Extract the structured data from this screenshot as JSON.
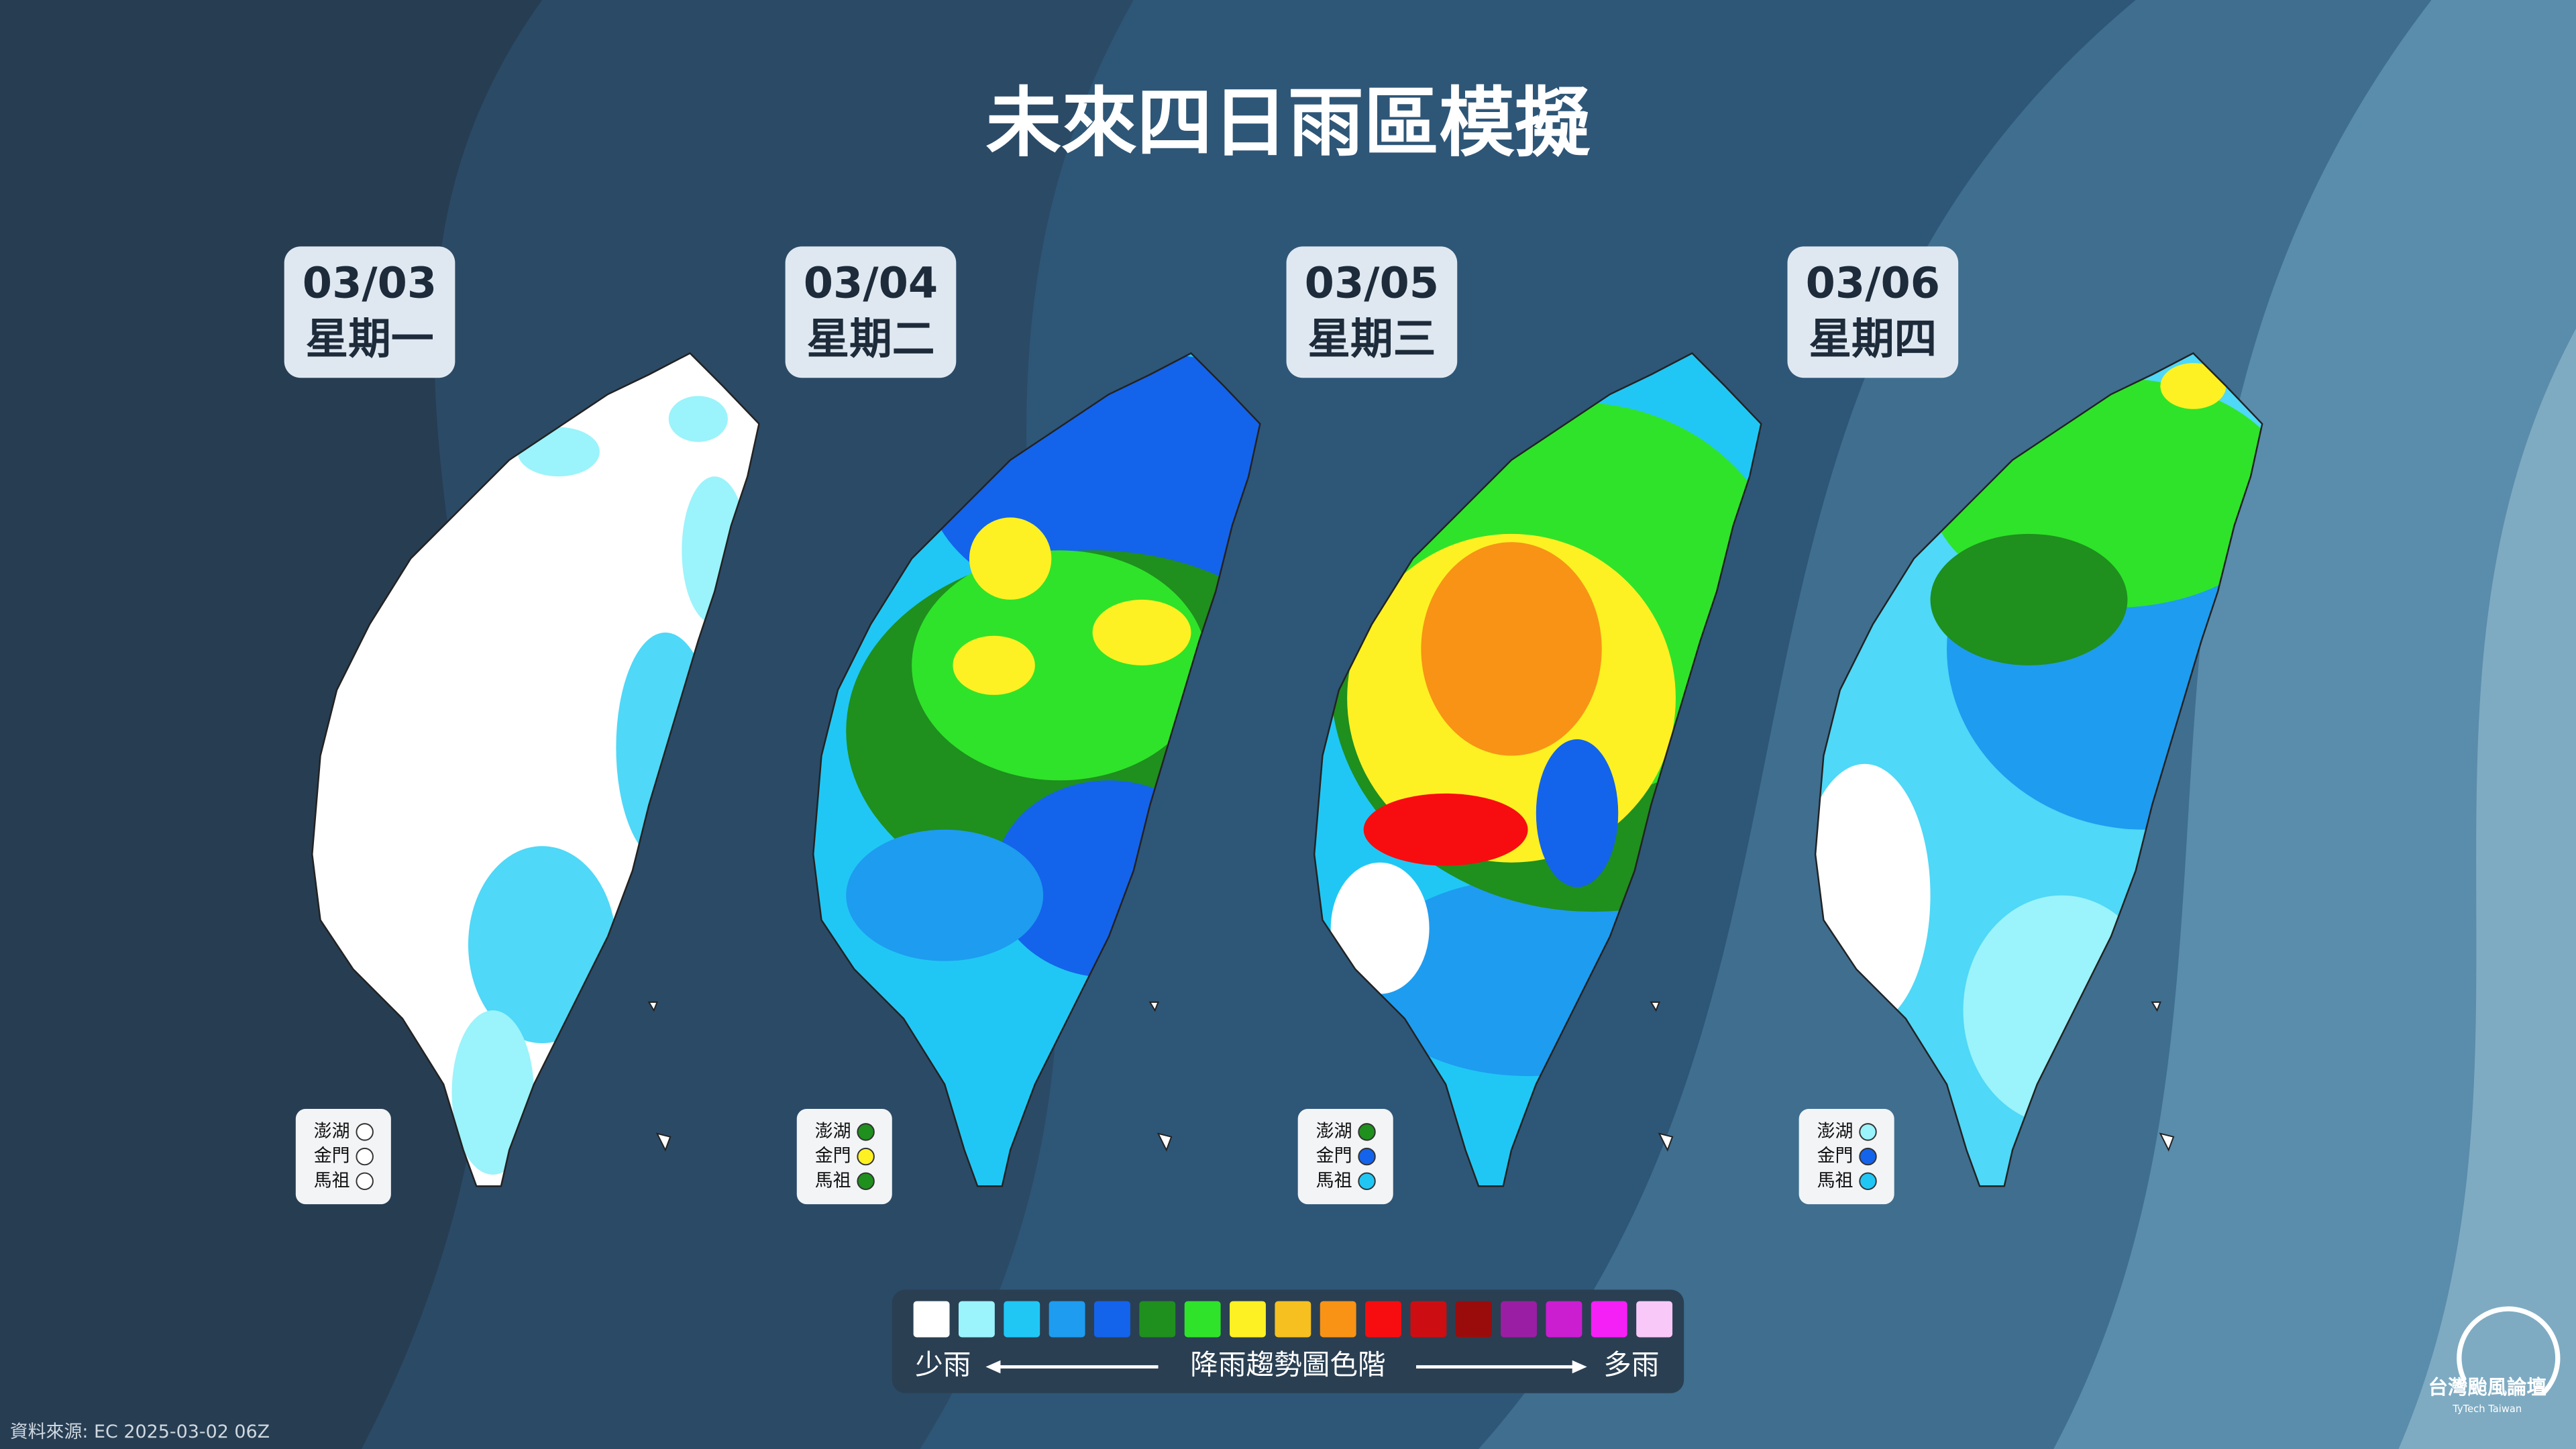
{
  "title": "未來四日雨區模擬",
  "days": [
    {
      "date": "03/03",
      "weekday": "星期一",
      "islands": [
        {
          "name": "澎湖",
          "color": "#ffffff"
        },
        {
          "name": "金門",
          "color": "#ffffff"
        },
        {
          "name": "馬祖",
          "color": "#ffffff"
        }
      ]
    },
    {
      "date": "03/04",
      "weekday": "星期二",
      "islands": [
        {
          "name": "澎湖",
          "color": "#1f8f1e"
        },
        {
          "name": "金門",
          "color": "#fdf123"
        },
        {
          "name": "馬祖",
          "color": "#1f8f1e"
        }
      ]
    },
    {
      "date": "03/05",
      "weekday": "星期三",
      "islands": [
        {
          "name": "澎湖",
          "color": "#1f8f1e"
        },
        {
          "name": "金門",
          "color": "#1463eb"
        },
        {
          "name": "馬祖",
          "color": "#20c7f5"
        }
      ]
    },
    {
      "date": "03/06",
      "weekday": "星期四",
      "islands": [
        {
          "name": "澎湖",
          "color": "#9bf3fb"
        },
        {
          "name": "金門",
          "color": "#1463eb"
        },
        {
          "name": "馬祖",
          "color": "#20c7f5"
        }
      ]
    }
  ],
  "scale": {
    "colors": [
      "#ffffff",
      "#9bf3fb",
      "#20c7f5",
      "#1e9cf0",
      "#1463eb",
      "#1f8f1e",
      "#2fe32a",
      "#fdf123",
      "#f5c020",
      "#f89316",
      "#f70d0f",
      "#cc0e12",
      "#9a0c0c",
      "#9a1ea3",
      "#ca1ed0",
      "#f420f5",
      "#f8c8f8"
    ],
    "less": "少雨",
    "label": "降雨趨勢圖色階",
    "more": "多雨"
  },
  "source": "資料來源: EC 2025-03-02 06Z",
  "logo": {
    "name": "台灣颱風論壇",
    "subtitle": "TyTech Taiwan"
  }
}
